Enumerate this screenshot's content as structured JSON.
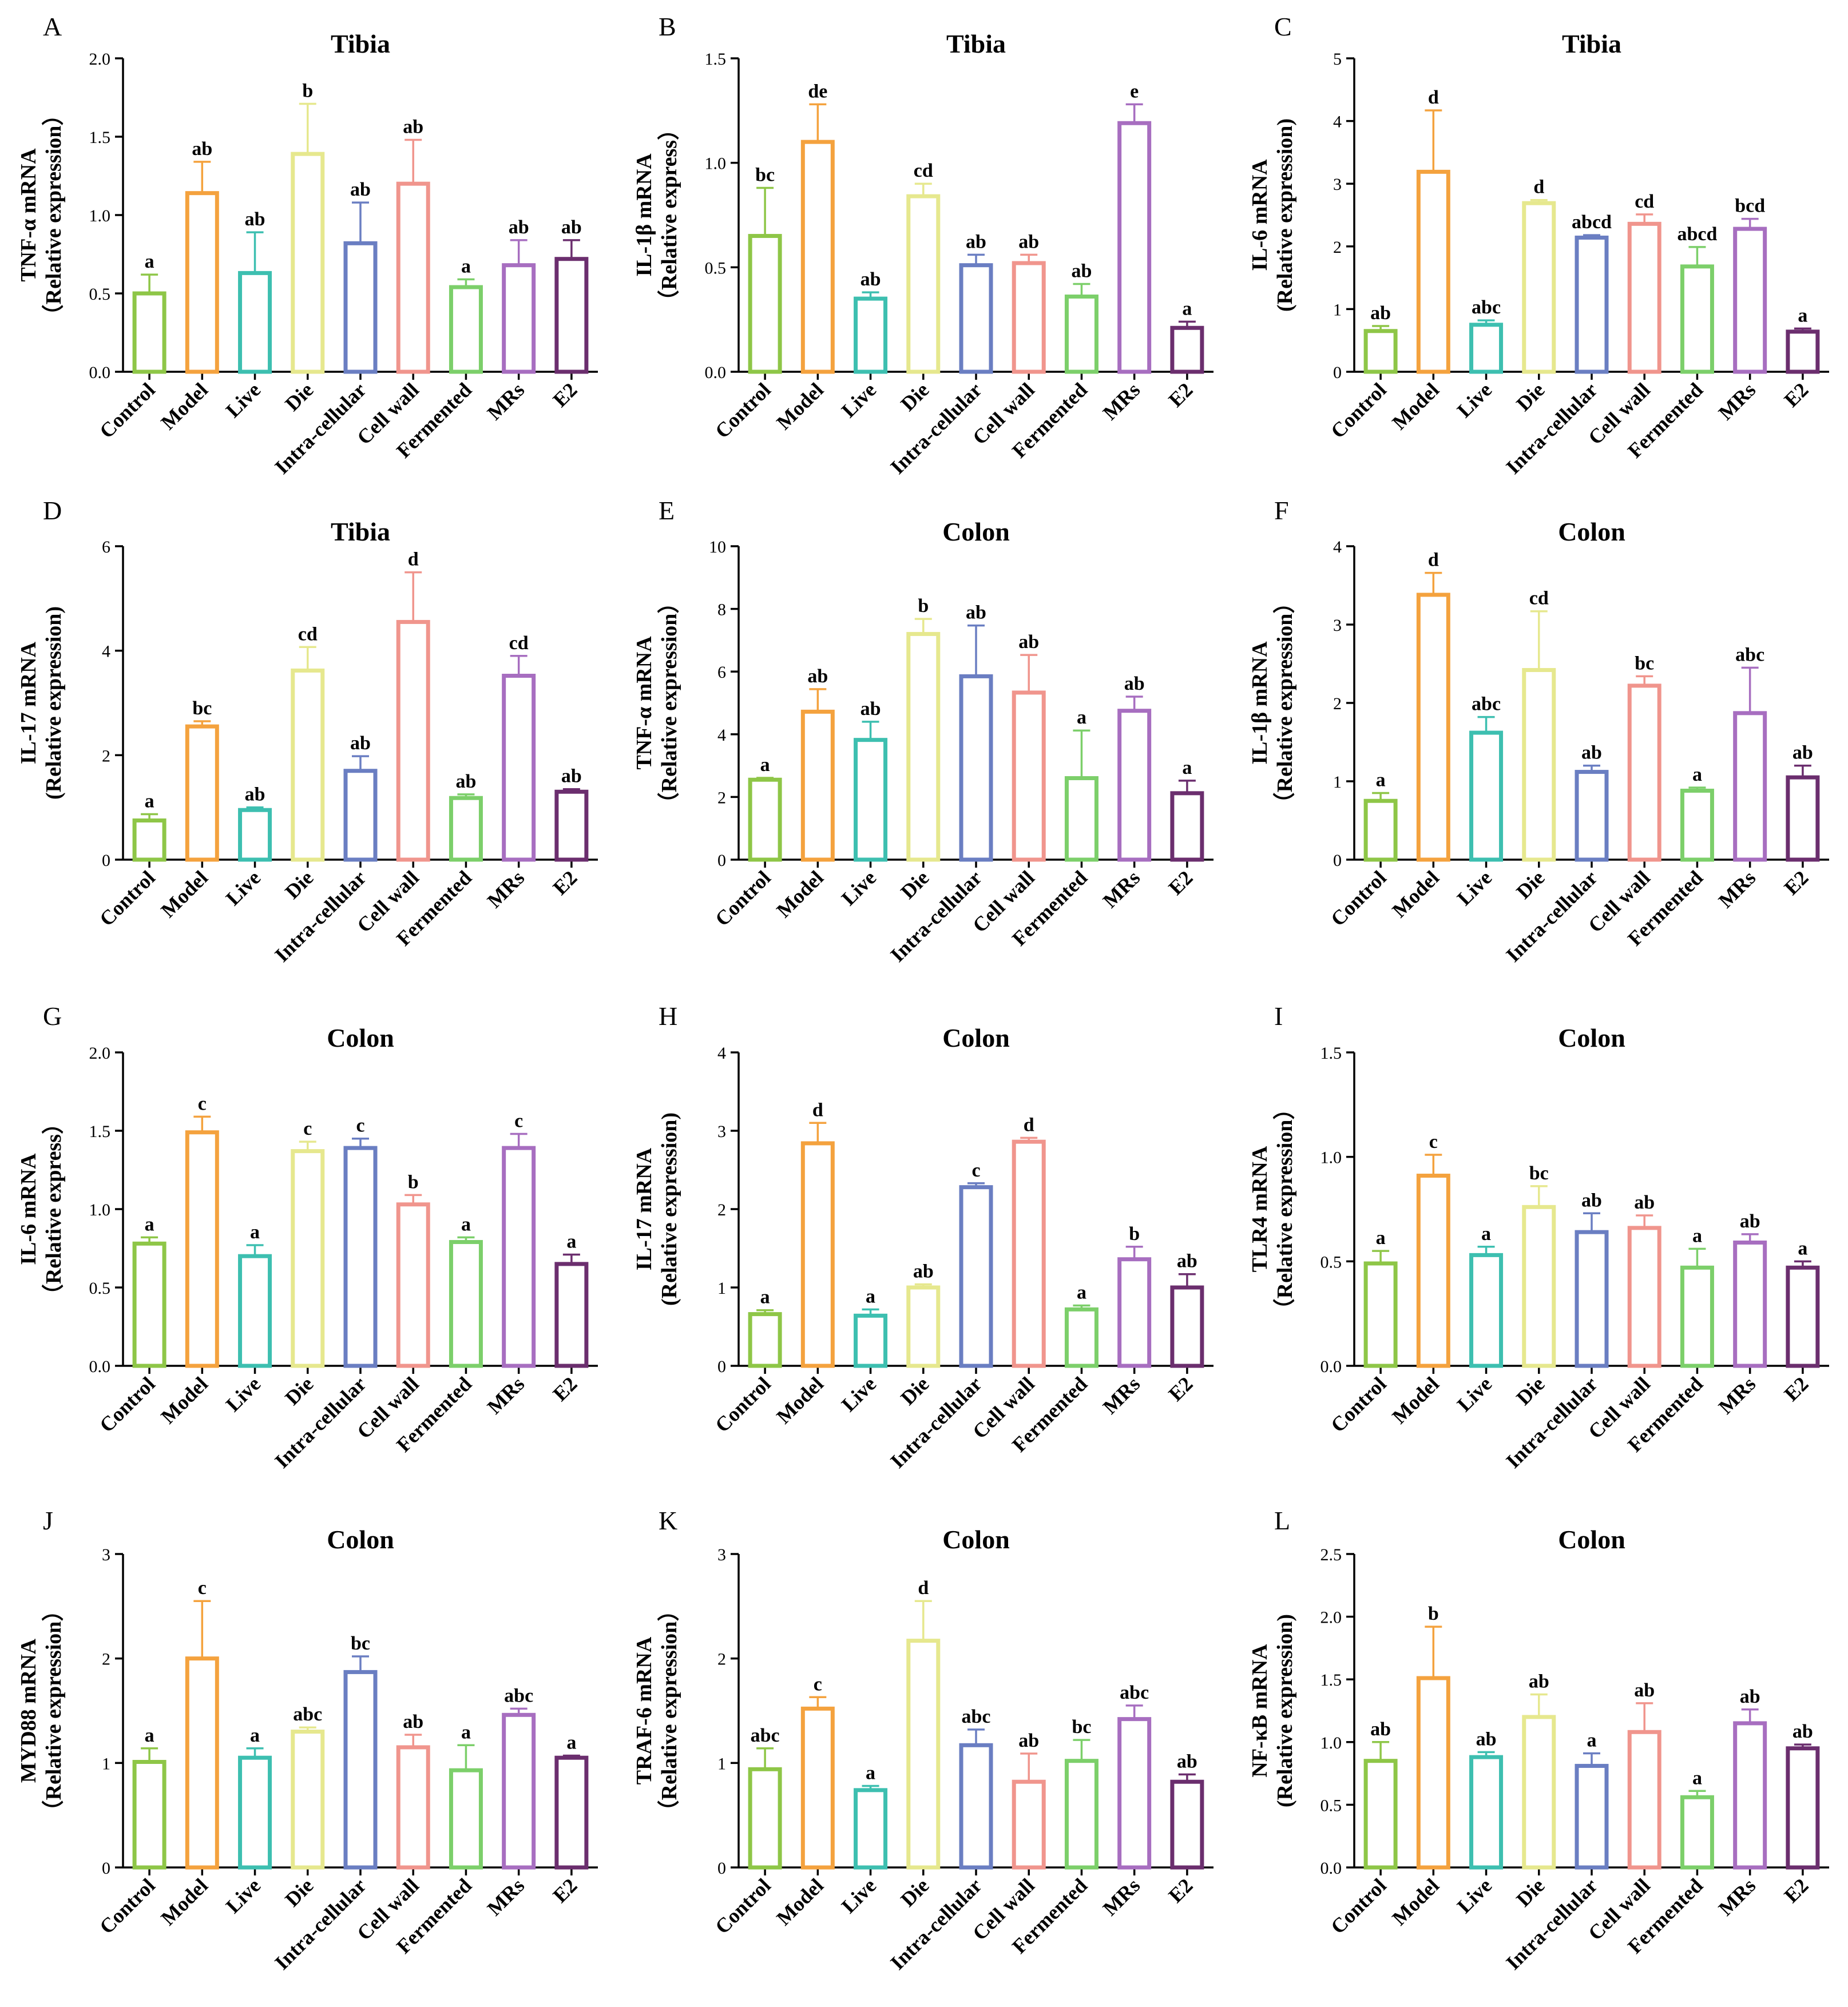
{
  "figure": {
    "categories": [
      "Control",
      "Model",
      "Live",
      "Die",
      "Intra-cellular",
      "Cell wall",
      "Fermented",
      "MRs",
      "E2"
    ],
    "colors": [
      "#8ec647",
      "#f4a23e",
      "#3dbfb0",
      "#e6e88e",
      "#6a7ec2",
      "#f0958d",
      "#7ccf6a",
      "#a76ec0",
      "#6b2e6e"
    ]
  },
  "chart_data": [
    {
      "panel": "A",
      "type": "bar",
      "title": "Tibia",
      "ylabel": [
        "TNF-α mRNA",
        "（Relative expression）"
      ],
      "ylim": [
        0,
        2.0
      ],
      "yticks": [
        "0.0",
        "0.5",
        "1.0",
        "1.5",
        "2.0"
      ],
      "values": [
        0.5,
        1.14,
        0.63,
        1.39,
        0.82,
        1.2,
        0.54,
        0.68,
        0.72
      ],
      "errors": [
        0.12,
        0.2,
        0.26,
        0.32,
        0.26,
        0.28,
        0.05,
        0.16,
        0.12
      ],
      "labels": [
        "a",
        "ab",
        "ab",
        "b",
        "ab",
        "ab",
        "a",
        "ab",
        "ab"
      ]
    },
    {
      "panel": "B",
      "type": "bar",
      "title": "Tibia",
      "ylabel": [
        "IL-1β mRNA",
        "（Relative express）"
      ],
      "ylim": [
        0,
        1.5
      ],
      "yticks": [
        "0.0",
        "0.5",
        "1.0",
        "1.5"
      ],
      "values": [
        0.65,
        1.1,
        0.35,
        0.84,
        0.51,
        0.52,
        0.36,
        1.19,
        0.21
      ],
      "errors": [
        0.23,
        0.18,
        0.03,
        0.06,
        0.05,
        0.04,
        0.06,
        0.09,
        0.03
      ],
      "labels": [
        "bc",
        "de",
        "ab",
        "cd",
        "ab",
        "ab",
        "ab",
        "e",
        "a"
      ]
    },
    {
      "panel": "C",
      "type": "bar",
      "title": "Tibia",
      "ylabel": [
        "IL-6 mRNA",
        "(Relative expression)"
      ],
      "ylim": [
        0,
        5
      ],
      "yticks": [
        "0",
        "1",
        "2",
        "3",
        "4",
        "5"
      ],
      "values": [
        0.65,
        3.19,
        0.75,
        2.69,
        2.14,
        2.36,
        1.68,
        2.28,
        0.64
      ],
      "errors": [
        0.08,
        0.98,
        0.07,
        0.05,
        0.04,
        0.15,
        0.31,
        0.16,
        0.05
      ],
      "labels": [
        "ab",
        "d",
        "abc",
        "d",
        "abcd",
        "cd",
        "abcd",
        "bcd",
        "a"
      ]
    },
    {
      "panel": "D",
      "type": "bar",
      "title": "Tibia",
      "ylabel": [
        "IL-17 mRNA",
        "(Relative expression)"
      ],
      "ylim": [
        0,
        6
      ],
      "yticks": [
        "0",
        "2",
        "4",
        "6"
      ],
      "values": [
        0.75,
        2.55,
        0.95,
        3.62,
        1.7,
        4.55,
        1.18,
        3.52,
        1.3
      ],
      "errors": [
        0.12,
        0.1,
        0.05,
        0.45,
        0.28,
        0.95,
        0.07,
        0.38,
        0.05
      ],
      "labels": [
        "a",
        "bc",
        "ab",
        "cd",
        "ab",
        "d",
        "ab",
        "cd",
        "ab"
      ]
    },
    {
      "panel": "E",
      "type": "bar",
      "title": "Colon",
      "ylabel": [
        "TNF-α mRNA",
        "（Relative expression）"
      ],
      "ylim": [
        0,
        10
      ],
      "yticks": [
        "0",
        "2",
        "4",
        "6",
        "8",
        "10"
      ],
      "values": [
        2.55,
        4.72,
        3.82,
        7.2,
        5.85,
        5.33,
        2.6,
        4.75,
        2.12
      ],
      "errors": [
        0.06,
        0.72,
        0.58,
        0.48,
        1.62,
        1.2,
        1.52,
        0.45,
        0.4
      ],
      "labels": [
        "a",
        "ab",
        "ab",
        "b",
        "ab",
        "ab",
        "a",
        "ab",
        "a"
      ]
    },
    {
      "panel": "F",
      "type": "bar",
      "title": "Colon",
      "ylabel": [
        "IL-1β mRNA",
        "（Relative expression）"
      ],
      "ylim": [
        0,
        4
      ],
      "yticks": [
        "0",
        "1",
        "2",
        "3",
        "4"
      ],
      "values": [
        0.75,
        3.38,
        1.62,
        2.42,
        1.12,
        2.22,
        0.88,
        1.87,
        1.05
      ],
      "errors": [
        0.1,
        0.28,
        0.2,
        0.75,
        0.08,
        0.12,
        0.04,
        0.58,
        0.15
      ],
      "labels": [
        "a",
        "d",
        "abc",
        "cd",
        "ab",
        "bc",
        "a",
        "abc",
        "ab"
      ]
    },
    {
      "panel": "G",
      "type": "bar",
      "title": "Colon",
      "ylabel": [
        "IL-6 mRNA",
        "（Relative express）"
      ],
      "ylim": [
        0,
        2.0
      ],
      "yticks": [
        "0.0",
        "0.5",
        "1.0",
        "1.5",
        "2.0"
      ],
      "values": [
        0.78,
        1.49,
        0.7,
        1.37,
        1.39,
        1.03,
        0.79,
        1.39,
        0.65
      ],
      "errors": [
        0.04,
        0.1,
        0.07,
        0.06,
        0.06,
        0.06,
        0.03,
        0.09,
        0.06
      ],
      "labels": [
        "a",
        "c",
        "a",
        "c",
        "c",
        "b",
        "a",
        "c",
        "a"
      ]
    },
    {
      "panel": "H",
      "type": "bar",
      "title": "Colon",
      "ylabel": [
        "IL-17 mRNA",
        "(Relative expression)"
      ],
      "ylim": [
        0,
        4
      ],
      "yticks": [
        "0",
        "1",
        "2",
        "3",
        "4"
      ],
      "values": [
        0.66,
        2.84,
        0.64,
        1.0,
        2.28,
        2.86,
        0.72,
        1.36,
        1.0
      ],
      "errors": [
        0.05,
        0.26,
        0.08,
        0.04,
        0.05,
        0.05,
        0.05,
        0.16,
        0.17
      ],
      "labels": [
        "a",
        "d",
        "a",
        "ab",
        "c",
        "d",
        "a",
        "b",
        "ab"
      ]
    },
    {
      "panel": "I",
      "type": "bar",
      "title": "Colon",
      "ylabel": [
        "TLR4 mRNA",
        "（Relative expression）"
      ],
      "ylim": [
        0,
        1.5
      ],
      "yticks": [
        "0.0",
        "0.5",
        "1.0",
        "1.5"
      ],
      "values": [
        0.49,
        0.91,
        0.53,
        0.76,
        0.64,
        0.66,
        0.47,
        0.59,
        0.47
      ],
      "errors": [
        0.06,
        0.1,
        0.04,
        0.1,
        0.09,
        0.06,
        0.09,
        0.04,
        0.03
      ],
      "labels": [
        "a",
        "c",
        "a",
        "bc",
        "ab",
        "ab",
        "a",
        "ab",
        "a"
      ]
    },
    {
      "panel": "J",
      "type": "bar",
      "title": "Colon",
      "ylabel": [
        "MYD88 mRNA",
        "（Relative expression）"
      ],
      "ylim": [
        0,
        3
      ],
      "yticks": [
        "0",
        "1",
        "2",
        "3"
      ],
      "values": [
        1.01,
        2.0,
        1.05,
        1.3,
        1.87,
        1.15,
        0.93,
        1.46,
        1.05
      ],
      "errors": [
        0.13,
        0.55,
        0.09,
        0.04,
        0.15,
        0.12,
        0.24,
        0.06,
        0.02
      ],
      "labels": [
        "a",
        "c",
        "a",
        "abc",
        "bc",
        "ab",
        "a",
        "abc",
        "a"
      ]
    },
    {
      "panel": "K",
      "type": "bar",
      "title": "Colon",
      "ylabel": [
        "TRAF-6 mRNA",
        "（Relative expression）"
      ],
      "ylim": [
        0,
        3
      ],
      "yticks": [
        "0",
        "1",
        "2",
        "3"
      ],
      "values": [
        0.94,
        1.52,
        0.74,
        2.17,
        1.17,
        0.82,
        1.02,
        1.42,
        0.82
      ],
      "errors": [
        0.2,
        0.11,
        0.04,
        0.38,
        0.15,
        0.27,
        0.2,
        0.13,
        0.07
      ],
      "labels": [
        "abc",
        "c",
        "a",
        "d",
        "abc",
        "ab",
        "bc",
        "abc",
        "ab"
      ]
    },
    {
      "panel": "L",
      "type": "bar",
      "title": "Colon",
      "ylabel": [
        "NF-κB mRNA",
        "(Relative expression)"
      ],
      "ylim": [
        0,
        2.5
      ],
      "yticks": [
        "0.0",
        "0.5",
        "1.0",
        "1.5",
        "2.0",
        "2.5"
      ],
      "values": [
        0.85,
        1.51,
        0.88,
        1.2,
        0.81,
        1.08,
        0.56,
        1.15,
        0.95
      ],
      "errors": [
        0.15,
        0.41,
        0.04,
        0.18,
        0.1,
        0.23,
        0.05,
        0.11,
        0.03
      ],
      "labels": [
        "ab",
        "b",
        "ab",
        "ab",
        "a",
        "ab",
        "a",
        "ab",
        "ab"
      ]
    }
  ]
}
